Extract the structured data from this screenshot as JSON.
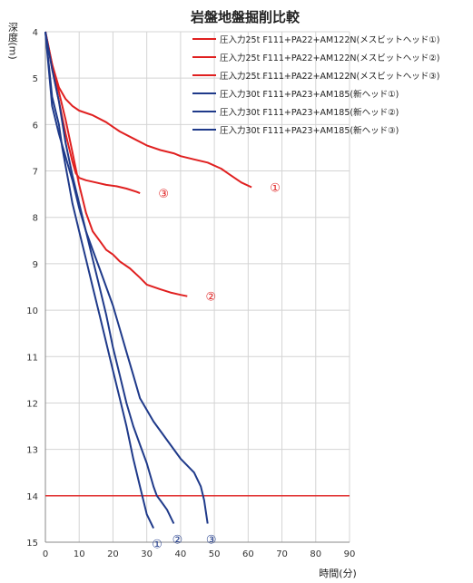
{
  "chart_data": {
    "type": "line",
    "title": "岩盤地盤掘削比較",
    "xlabel": "時間(分)",
    "ylabel": "深度(m)",
    "xlim": [
      0,
      90
    ],
    "ylim": [
      4,
      15
    ],
    "y_inverted": true,
    "x_ticks": [
      0,
      10,
      20,
      30,
      40,
      50,
      60,
      70,
      80,
      90
    ],
    "y_ticks": [
      4,
      5,
      6,
      7,
      8,
      9,
      10,
      11,
      12,
      13,
      14,
      15
    ],
    "grid": true,
    "legend_position": "top-right",
    "reference_line": {
      "y": 14,
      "color": "#e02020"
    },
    "series": [
      {
        "name": "圧入力25t F111+PA22+AM122N(メスビットヘッド①)",
        "color": "#e02020",
        "label": "①",
        "x": [
          0,
          2,
          4,
          6,
          8,
          10,
          14,
          18,
          20,
          22,
          26,
          30,
          34,
          38,
          40,
          44,
          48,
          52,
          55,
          58,
          61
        ],
        "y": [
          4,
          4.7,
          5.2,
          5.45,
          5.6,
          5.7,
          5.8,
          5.95,
          6.05,
          6.15,
          6.3,
          6.45,
          6.55,
          6.62,
          6.68,
          6.75,
          6.82,
          6.95,
          7.1,
          7.25,
          7.35
        ]
      },
      {
        "name": "圧入力25t F111+PA22+AM122N(メスビットヘッド②)",
        "color": "#e02020",
        "label": "②",
        "x": [
          0,
          2,
          4,
          6,
          8,
          10,
          12,
          14,
          16,
          18,
          20,
          22,
          25,
          28,
          30,
          34,
          37,
          40,
          42
        ],
        "y": [
          4,
          4.7,
          5.3,
          5.9,
          6.6,
          7.3,
          7.9,
          8.3,
          8.5,
          8.7,
          8.8,
          8.95,
          9.1,
          9.3,
          9.45,
          9.55,
          9.62,
          9.67,
          9.7
        ]
      },
      {
        "name": "圧入力25t F111+PA22+AM122N(メスビットヘッド③)",
        "color": "#e02020",
        "label": "③",
        "x": [
          0,
          2,
          4,
          6,
          8,
          9,
          10,
          12,
          15,
          18,
          21,
          24,
          27,
          28
        ],
        "y": [
          4,
          4.8,
          5.5,
          6.2,
          6.8,
          7.05,
          7.15,
          7.2,
          7.25,
          7.3,
          7.33,
          7.38,
          7.45,
          7.48
        ]
      },
      {
        "name": "圧入力30t F111+PA23+AM185(新ヘッド①)",
        "color": "#1f3a8a",
        "label": "①",
        "x": [
          0,
          2,
          4,
          5,
          6,
          7,
          8,
          10,
          12,
          14,
          16,
          18,
          20,
          22,
          24,
          26,
          28,
          30,
          32
        ],
        "y": [
          4,
          5.4,
          6,
          6.5,
          6.9,
          7.3,
          7.7,
          8.3,
          8.9,
          9.5,
          10.1,
          10.7,
          11.3,
          11.9,
          12.5,
          13.2,
          13.8,
          14.4,
          14.7
        ]
      },
      {
        "name": "圧入力30t F111+PA23+AM185(新ヘッド②)",
        "color": "#1f3a8a",
        "label": "②",
        "x": [
          0,
          1,
          2,
          4,
          6,
          8,
          10,
          12,
          14,
          16,
          18,
          20,
          22,
          24,
          26,
          28,
          30,
          32,
          33,
          34,
          36,
          38
        ],
        "y": [
          4,
          4.8,
          5.6,
          6.2,
          6.7,
          7.2,
          7.8,
          8.3,
          8.9,
          9.5,
          10.1,
          10.8,
          11.4,
          12,
          12.5,
          12.9,
          13.3,
          13.8,
          14,
          14.1,
          14.3,
          14.6
        ]
      },
      {
        "name": "圧入力30t F111+PA23+AM185(新ヘッド③)",
        "color": "#1f3a8a",
        "label": "③",
        "x": [
          0,
          2,
          4,
          6,
          8,
          10,
          12,
          14,
          16,
          18,
          20,
          22,
          24,
          26,
          28,
          32,
          36,
          40,
          44,
          46,
          47,
          48
        ],
        "y": [
          4,
          4.8,
          5.5,
          6.4,
          7.1,
          7.7,
          8.3,
          8.7,
          9.1,
          9.5,
          9.9,
          10.4,
          10.9,
          11.4,
          11.9,
          12.4,
          12.8,
          13.2,
          13.5,
          13.8,
          14.1,
          14.6
        ]
      }
    ]
  }
}
